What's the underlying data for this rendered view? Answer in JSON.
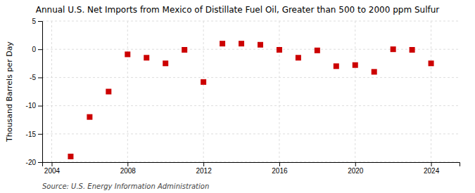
{
  "chart_data": {
    "type": "scatter",
    "title": "Annual U.S. Net Imports from Mexico of Distillate Fuel Oil, Greater than 500 to 2000 ppm Sulfur",
    "y_label": "Thousand Barrels per Day",
    "annotation": "Source: U.S. Energy Information Administration",
    "x": [
      2005,
      2006,
      2007,
      2008,
      2009,
      2010,
      2011,
      2012,
      2013,
      2014,
      2015,
      2016,
      2017,
      2018,
      2019,
      2020,
      2021,
      2022,
      2023,
      2024
    ],
    "values": [
      -19.0,
      -12.0,
      -7.5,
      -0.9,
      -1.5,
      -2.5,
      -0.1,
      -5.8,
      1.0,
      1.0,
      0.8,
      -0.1,
      -1.5,
      -0.2,
      -3.0,
      -2.8,
      -4.0,
      0.0,
      -0.1,
      -2.5
    ],
    "xlim": [
      2003.5,
      2025.5
    ],
    "xticks": [
      2004,
      2008,
      2012,
      2016,
      2020,
      2024
    ],
    "ylim": [
      -20,
      5
    ],
    "yticks": [
      -20,
      -15,
      -10,
      -5,
      0,
      5
    ],
    "color": "#cc0000",
    "marker": "square",
    "grid": true
  }
}
